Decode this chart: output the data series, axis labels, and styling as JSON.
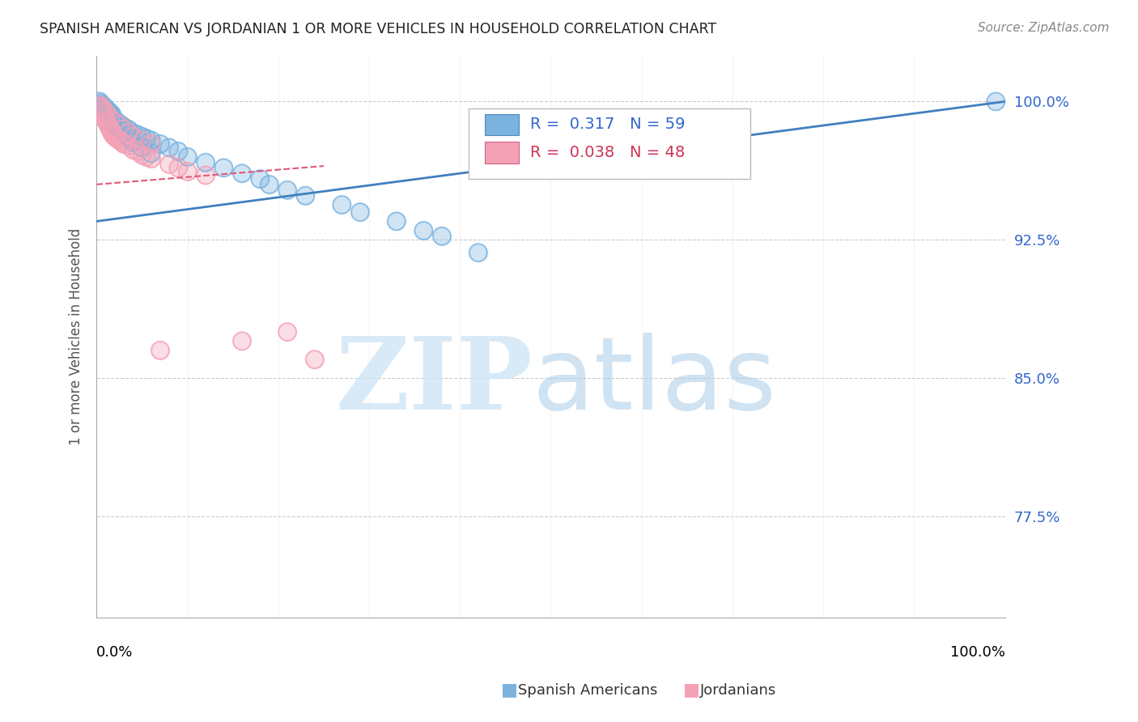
{
  "title": "SPANISH AMERICAN VS JORDANIAN 1 OR MORE VEHICLES IN HOUSEHOLD CORRELATION CHART",
  "source": "Source: ZipAtlas.com",
  "ylabel": "1 or more Vehicles in Household",
  "ytick_labels": [
    "100.0%",
    "92.5%",
    "85.0%",
    "77.5%"
  ],
  "ytick_values": [
    100.0,
    92.5,
    85.0,
    77.5
  ],
  "xmin": 0.0,
  "xmax": 100.0,
  "ymin": 72.0,
  "ymax": 102.5,
  "legend_blue_r": "R =  0.317",
  "legend_blue_n": "N = 59",
  "legend_pink_r": "R =  0.038",
  "legend_pink_n": "N = 48",
  "blue_color": "#7ab3e0",
  "pink_color": "#f4a0b5",
  "blue_line_color": "#4080c0",
  "pink_line_color": "#e05878",
  "watermark_zip": "ZIP",
  "watermark_atlas": "atlas",
  "blue_trend_x0": 0.0,
  "blue_trend_y0": 93.5,
  "blue_trend_x1": 100.0,
  "blue_trend_y1": 100.0,
  "pink_trend_x0": 0.0,
  "pink_trend_y0": 95.5,
  "pink_trend_x1": 25.0,
  "pink_trend_y1": 96.5,
  "sa_x": [
    0.3,
    0.5,
    0.6,
    0.7,
    0.8,
    0.9,
    1.0,
    1.1,
    1.2,
    1.3,
    1.4,
    1.5,
    1.6,
    1.7,
    1.8,
    2.0,
    2.2,
    2.5,
    2.8,
    3.0,
    3.5,
    4.0,
    4.5,
    5.0,
    5.5,
    6.0,
    7.0,
    8.0,
    9.0,
    10.0,
    12.0,
    14.0,
    16.0,
    18.0,
    19.0,
    21.0,
    23.0,
    27.0,
    29.0,
    33.0,
    36.0,
    38.0,
    42.0,
    0.4,
    0.6,
    0.8,
    1.0,
    1.2,
    1.4,
    1.6,
    1.8,
    2.0,
    2.5,
    3.0,
    3.5,
    4.0,
    5.0,
    6.0,
    99.0
  ],
  "sa_y": [
    100.0,
    99.8,
    99.7,
    99.8,
    99.6,
    99.7,
    99.5,
    99.6,
    99.4,
    99.5,
    99.3,
    99.4,
    99.2,
    99.3,
    99.1,
    99.0,
    98.9,
    98.8,
    98.7,
    98.6,
    98.5,
    98.3,
    98.2,
    98.1,
    98.0,
    97.9,
    97.7,
    97.5,
    97.3,
    97.0,
    96.7,
    96.4,
    96.1,
    95.8,
    95.5,
    95.2,
    94.9,
    94.4,
    94.0,
    93.5,
    93.0,
    92.7,
    91.8,
    99.9,
    99.8,
    99.7,
    99.5,
    99.4,
    99.3,
    99.1,
    99.0,
    98.8,
    98.6,
    98.4,
    98.1,
    97.8,
    97.5,
    97.2,
    100.0
  ],
  "jo_x": [
    0.3,
    0.4,
    0.5,
    0.6,
    0.7,
    0.8,
    0.9,
    1.0,
    1.1,
    1.2,
    1.3,
    1.4,
    1.5,
    1.6,
    1.7,
    1.8,
    2.0,
    2.2,
    2.5,
    2.8,
    3.0,
    3.5,
    4.0,
    4.5,
    5.0,
    5.5,
    6.0,
    7.0,
    8.0,
    9.0,
    10.0,
    12.0,
    16.0,
    21.0,
    24.0,
    0.4,
    0.6,
    0.8,
    1.0,
    1.2,
    1.5,
    2.0,
    2.5,
    3.0,
    3.5,
    4.0,
    5.0,
    6.0
  ],
  "jo_y": [
    99.7,
    99.6,
    99.5,
    99.4,
    99.3,
    99.2,
    99.1,
    99.0,
    98.9,
    98.8,
    98.7,
    98.6,
    98.5,
    98.4,
    98.3,
    98.2,
    98.1,
    98.0,
    97.9,
    97.8,
    97.7,
    97.6,
    97.4,
    97.3,
    97.1,
    97.0,
    96.9,
    86.5,
    96.6,
    96.4,
    96.2,
    96.0,
    87.0,
    87.5,
    86.0,
    99.8,
    99.7,
    99.5,
    99.4,
    99.3,
    99.1,
    98.9,
    98.7,
    98.5,
    98.3,
    98.1,
    97.9,
    97.7
  ]
}
